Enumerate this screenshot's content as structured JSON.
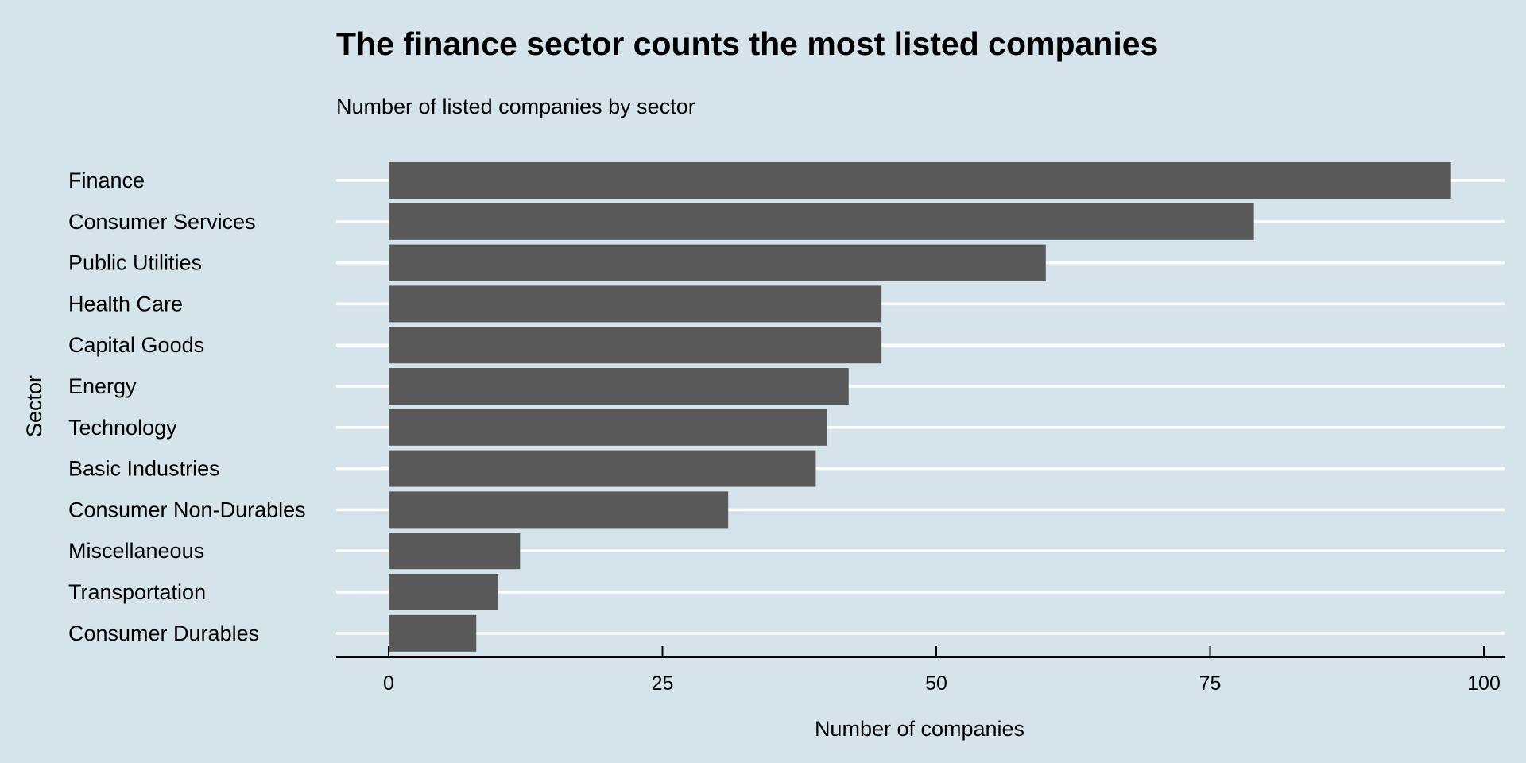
{
  "chart_data": {
    "type": "bar",
    "orientation": "horizontal",
    "title": "The finance sector counts the most listed companies",
    "subtitle": "Number of listed companies by sector",
    "xlabel": "Number of companies",
    "ylabel": "Sector",
    "categories": [
      "Finance",
      "Consumer Services",
      "Public Utilities",
      "Health Care",
      "Capital Goods",
      "Energy",
      "Technology",
      "Basic Industries",
      "Consumer Non-Durables",
      "Miscellaneous",
      "Transportation",
      "Consumer Durables"
    ],
    "values": [
      97,
      79,
      60,
      45,
      45,
      42,
      40,
      39,
      31,
      12,
      10,
      8
    ],
    "xlim": [
      0,
      100
    ],
    "x_ticks": [
      0,
      25,
      50,
      75,
      100
    ],
    "x_tick_labels": [
      "0",
      "25",
      "50",
      "75",
      "100"
    ],
    "grid": "horizontal major lines at each category",
    "legend": "none",
    "colors": {
      "background": "#d5e4eb",
      "bar": "#595959",
      "grid": "#ffffff",
      "axis": "#000000",
      "text": "#000000"
    }
  }
}
